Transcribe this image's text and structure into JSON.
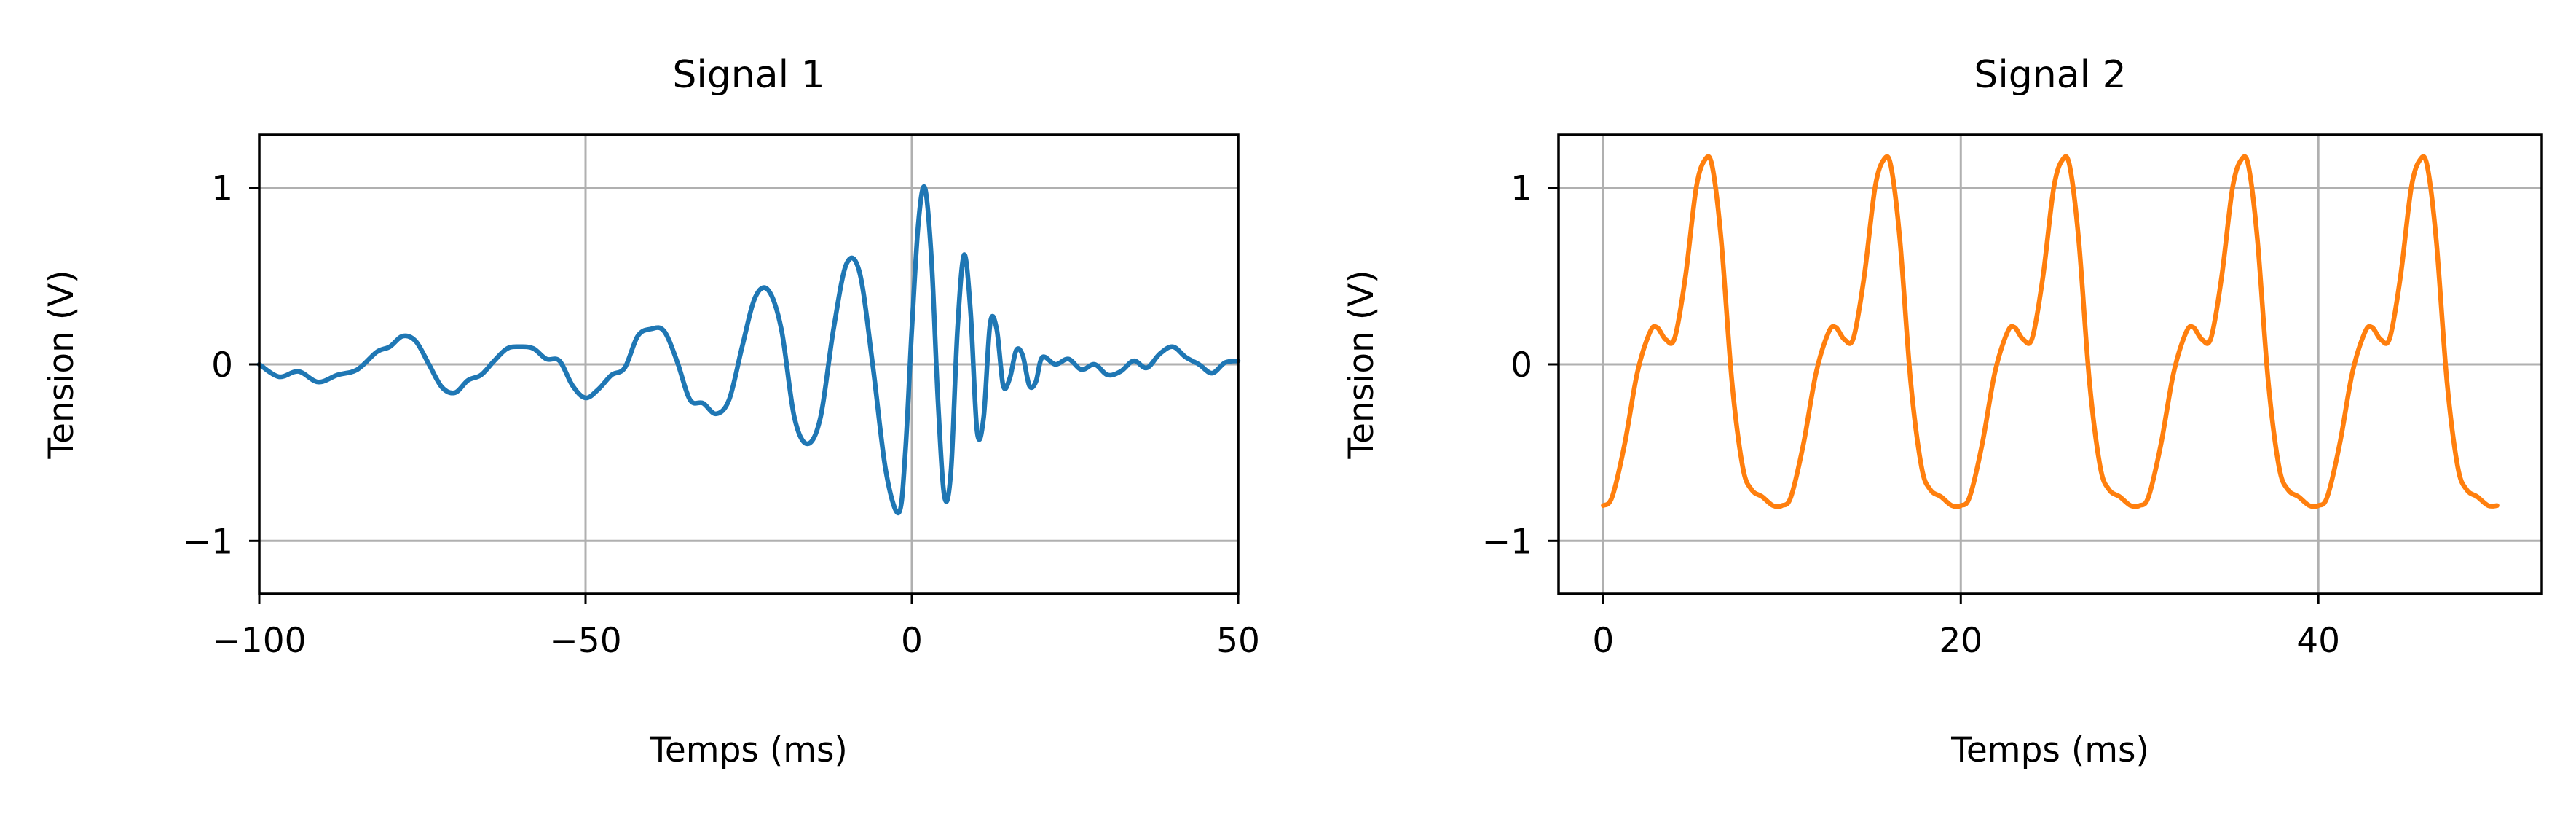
{
  "chart_data": [
    {
      "type": "line",
      "title": "Signal 1",
      "xlabel": "Temps (ms)",
      "ylabel": "Tension (V)",
      "xlim": [
        -100,
        50
      ],
      "ylim": [
        -1.3,
        1.3
      ],
      "xticks": [
        -100,
        -50,
        0,
        50
      ],
      "xtick_labels": [
        "−100",
        "−50",
        "0",
        "50"
      ],
      "yticks": [
        1,
        0,
        -1
      ],
      "ytick_labels": [
        "1",
        "0",
        "−1"
      ],
      "grid": true,
      "series": [
        {
          "color": "#1f77b4",
          "x": [
            -100,
            -97,
            -94,
            -91,
            -88,
            -85,
            -82,
            -80,
            -78,
            -76,
            -74,
            -72,
            -70,
            -68,
            -66,
            -64,
            -62,
            -60,
            -58,
            -56,
            -54,
            -52,
            -50,
            -48,
            -46,
            -44,
            -42,
            -40,
            -38,
            -36,
            -34,
            -32,
            -30,
            -28,
            -26,
            -24,
            -22,
            -20,
            -18,
            -16,
            -14,
            -12,
            -10,
            -8,
            -6,
            -4,
            -2,
            -1,
            0,
            1,
            2,
            3,
            4,
            5,
            6,
            7,
            8,
            9,
            10,
            11,
            12,
            13,
            14,
            15,
            16,
            17,
            18,
            19,
            20,
            22,
            24,
            26,
            28,
            30,
            32,
            34,
            36,
            38,
            40,
            42,
            44,
            46,
            48,
            50
          ],
          "y": [
            0.0,
            -0.07,
            -0.04,
            -0.1,
            -0.06,
            -0.03,
            0.07,
            0.1,
            0.16,
            0.13,
            0.0,
            -0.13,
            -0.16,
            -0.09,
            -0.06,
            0.02,
            0.09,
            0.1,
            0.09,
            0.03,
            0.02,
            -0.12,
            -0.19,
            -0.14,
            -0.06,
            -0.02,
            0.16,
            0.2,
            0.19,
            0.02,
            -0.2,
            -0.22,
            -0.28,
            -0.2,
            0.1,
            0.38,
            0.42,
            0.2,
            -0.3,
            -0.45,
            -0.3,
            0.2,
            0.57,
            0.52,
            0.0,
            -0.6,
            -0.84,
            -0.5,
            0.2,
            0.8,
            1.0,
            0.6,
            -0.2,
            -0.75,
            -0.6,
            0.2,
            0.62,
            0.3,
            -0.38,
            -0.3,
            0.23,
            0.2,
            -0.12,
            -0.08,
            0.08,
            0.05,
            -0.12,
            -0.1,
            0.04,
            0.0,
            0.03,
            -0.03,
            0.0,
            -0.06,
            -0.04,
            0.02,
            -0.02,
            0.06,
            0.1,
            0.04,
            0.0,
            -0.05,
            0.01,
            0.02
          ]
        }
      ]
    },
    {
      "type": "line",
      "title": "Signal 2",
      "xlabel": "Temps (ms)",
      "ylabel": "Tension (V)",
      "xlim": [
        -2.5,
        52.5
      ],
      "ylim": [
        -1.3,
        1.3
      ],
      "xticks": [
        0,
        20,
        40
      ],
      "xtick_labels": [
        "0",
        "20",
        "40"
      ],
      "yticks": [
        1,
        0,
        -1
      ],
      "ytick_labels": [
        "1",
        "0",
        "−1"
      ],
      "grid": true,
      "series": [
        {
          "color": "#ff7f0e",
          "period": 10,
          "x_range": [
            0,
            50
          ],
          "cycle_x": [
            0,
            0.5,
            1.2,
            1.9,
            2.6,
            3.0,
            3.5,
            4.0,
            4.6,
            5.2,
            5.7,
            6.1,
            6.6,
            7.2,
            7.8,
            8.3,
            8.9,
            9.5,
            10.0
          ],
          "cycle_y": [
            -0.8,
            -0.75,
            -0.45,
            -0.05,
            0.18,
            0.21,
            0.14,
            0.15,
            0.5,
            1.0,
            1.16,
            1.12,
            0.7,
            -0.1,
            -0.58,
            -0.71,
            -0.75,
            -0.8,
            -0.8
          ]
        }
      ]
    }
  ]
}
